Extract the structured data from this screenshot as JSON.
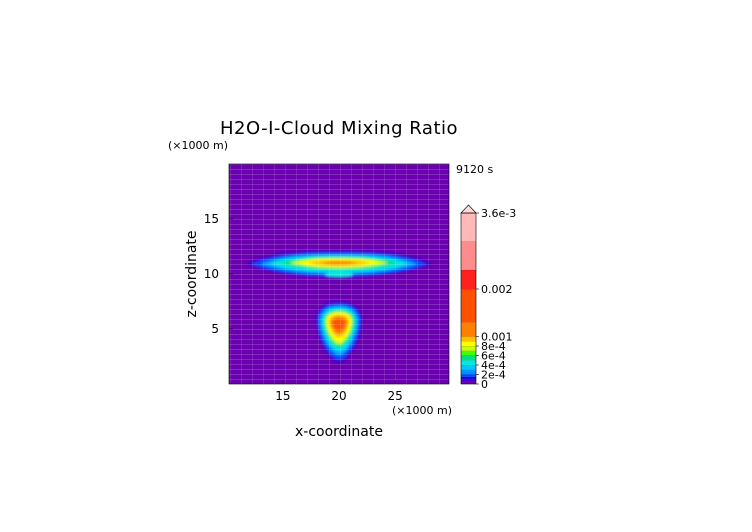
{
  "chart_data": {
    "type": "heatmap",
    "title": "H2O-I-Cloud Mixing Ratio",
    "time_label": "9120 s",
    "xlabel": "x-coordinate",
    "ylabel": "z-coordinate",
    "x_unit": "(×1000 m)",
    "y_unit": "(×1000 m)",
    "xlim": [
      10.2,
      29.8
    ],
    "ylim": [
      0,
      20
    ],
    "x_ticks": [
      15,
      20,
      25
    ],
    "y_ticks": [
      5,
      10,
      15
    ],
    "colorbar": {
      "min": 0,
      "max": 0.0036,
      "tick_values": [
        0.0036,
        0.002,
        0.001,
        0.0008,
        0.0006,
        0.0004,
        0.0002,
        0
      ],
      "tick_labels": [
        "3.6e-3",
        "0.002",
        "0.001",
        "8e-4",
        "6e-4",
        "4e-4",
        "2e-4",
        "0"
      ],
      "extend": "max",
      "colors": [
        "#6a00b0",
        "#3a00d0",
        "#0048ff",
        "#00a8ff",
        "#00e8e0",
        "#00e080",
        "#40ff00",
        "#c8ff00",
        "#ffff00",
        "#ffc000",
        "#ff8000",
        "#ff5000",
        "#ff2020",
        "#ff6060",
        "#ff8c8c",
        "#ffb4b4",
        "#ffd0d0"
      ]
    },
    "features": [
      {
        "name": "anvil layer",
        "x_range": [
          12,
          28
        ],
        "z_range": [
          9.8,
          12.1
        ],
        "peak_x": 21,
        "peak_z": 11,
        "peak_value": 0.0008
      },
      {
        "name": "convective core",
        "x_range": [
          18,
          22
        ],
        "z_range": [
          2,
          7.4
        ],
        "peak_x": 20,
        "peak_z": 5.2,
        "peak_value": 0.001
      }
    ]
  }
}
